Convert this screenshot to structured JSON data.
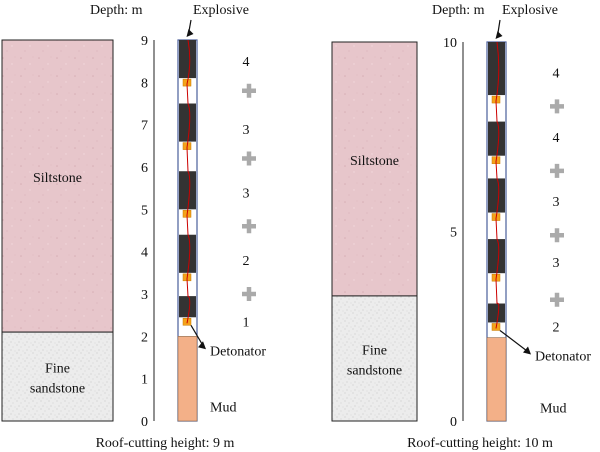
{
  "colors": {
    "siltstone": "#e7c6cb",
    "sandstone": "#ececec",
    "mud": "#f3b088",
    "charge": "#333333",
    "plus": "#aaaaaa",
    "detonator": "#f4a21a",
    "wire": "#cc0000",
    "tube_border": "#4a5f9b"
  },
  "panels": [
    {
      "depth_label": "Depth: m",
      "explosive_label": "Explosive",
      "detonator_label": "Detonator",
      "mud_label": "Mud",
      "rock_layers": [
        {
          "label": "Siltstone",
          "from": 2.1,
          "to": 9
        },
        {
          "label_lines": [
            "Fine",
            "sandstone"
          ],
          "from": 0,
          "to": 2.1
        }
      ],
      "scale_max": 9,
      "ticks": [
        "0",
        "1",
        "2",
        "3",
        "4",
        "5",
        "6",
        "7",
        "8",
        "9"
      ],
      "mud_top": 2.0,
      "charges": [
        {
          "from": 2.45,
          "to": 2.95
        },
        {
          "from": 3.5,
          "to": 4.4
        },
        {
          "from": 5.0,
          "to": 5.9
        },
        {
          "from": 6.6,
          "to": 7.5
        },
        {
          "from": 8.1,
          "to": 9.0
        }
      ],
      "spacer_marks": [
        {
          "at": 3.0
        },
        {
          "at": 4.6
        },
        {
          "at": 6.2
        },
        {
          "at": 7.8
        }
      ],
      "segment_counts": [
        {
          "label": "1",
          "at": 2.35
        },
        {
          "label": "2",
          "at": 3.8
        },
        {
          "label": "3",
          "at": 5.4
        },
        {
          "label": "3",
          "at": 6.9
        },
        {
          "label": "4",
          "at": 8.5
        }
      ],
      "caption": "Roof-cutting height: 9 m"
    },
    {
      "depth_label": "Depth: m",
      "explosive_label": "Explosive",
      "detonator_label": "Detonator",
      "mud_label": "Mud",
      "rock_layers": [
        {
          "label": "Siltstone",
          "from": 3.3,
          "to": 10
        },
        {
          "label_lines": [
            "Fine",
            "sandstone"
          ],
          "from": 0,
          "to": 3.3
        }
      ],
      "scale_max": 10,
      "ticks": [
        "0",
        "5",
        "10"
      ],
      "mud_top": 2.2,
      "charges": [
        {
          "from": 2.6,
          "to": 3.1
        },
        {
          "from": 3.9,
          "to": 4.8
        },
        {
          "from": 5.5,
          "to": 6.4
        },
        {
          "from": 7.0,
          "to": 7.9
        },
        {
          "from": 8.6,
          "to": 10.0
        }
      ],
      "spacer_marks": [
        {
          "at": 3.2
        },
        {
          "at": 4.9
        },
        {
          "at": 6.6
        },
        {
          "at": 8.3
        }
      ],
      "segment_counts": [
        {
          "label": "2",
          "at": 2.5
        },
        {
          "label": "3",
          "at": 4.2
        },
        {
          "label": "3",
          "at": 5.8
        },
        {
          "label": "4",
          "at": 7.5
        },
        {
          "label": "4",
          "at": 9.2
        }
      ],
      "caption": "Roof-cutting height: 10 m"
    }
  ]
}
